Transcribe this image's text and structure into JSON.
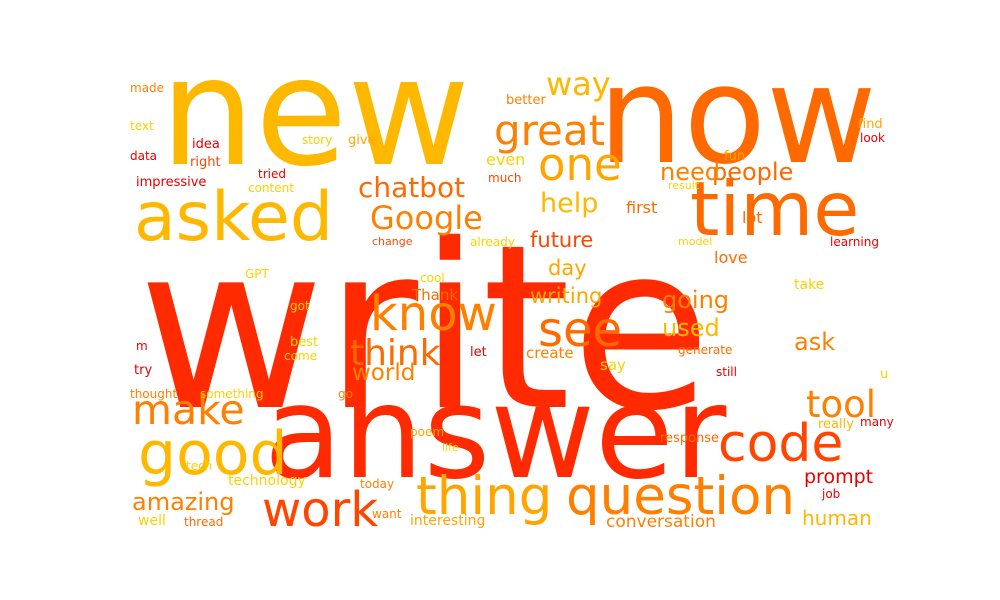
{
  "word_cloud": {
    "colors": {
      "background": "#ffffff",
      "deep_red": "#e60000",
      "red": "#ff2a00",
      "red_orange": "#ff4500",
      "orange": "#ff6a00",
      "dark_orange": "#ff8000",
      "amber": "#ffa500",
      "gold": "#ffb800",
      "yellow": "#ffd000",
      "light_yellow": "#ffe000"
    },
    "words": [
      {
        "text": "write",
        "color": "#ff2a00"
      },
      {
        "text": "new",
        "color": "#ffb800"
      },
      {
        "text": "now",
        "color": "#ff6a00"
      },
      {
        "text": "answer",
        "color": "#ff2a00"
      },
      {
        "text": "asked",
        "color": "#ffb800"
      },
      {
        "text": "time",
        "color": "#ff6a00"
      },
      {
        "text": "one",
        "color": "#ffa500"
      },
      {
        "text": "Google",
        "color": "#ff8000"
      },
      {
        "text": "great",
        "color": "#ff8000"
      },
      {
        "text": "way",
        "color": "#ffb800"
      },
      {
        "text": "know",
        "color": "#ff8000"
      },
      {
        "text": "see",
        "color": "#ff6a00"
      },
      {
        "text": "think",
        "color": "#ff6a00"
      },
      {
        "text": "make",
        "color": "#ff8000"
      },
      {
        "text": "good",
        "color": "#ffb800"
      },
      {
        "text": "code",
        "color": "#ff4500"
      },
      {
        "text": "tool",
        "color": "#ff8000"
      },
      {
        "text": "thing",
        "color": "#ffa500"
      },
      {
        "text": "question",
        "color": "#ff8000"
      },
      {
        "text": "work",
        "color": "#ff4500"
      },
      {
        "text": "chatbot",
        "color": "#ff6a00"
      },
      {
        "text": "help",
        "color": "#ffb800"
      },
      {
        "text": "people",
        "color": "#ff6a00"
      },
      {
        "text": "need",
        "color": "#ff8000"
      },
      {
        "text": "future",
        "color": "#ff4500"
      },
      {
        "text": "day",
        "color": "#ffa500"
      },
      {
        "text": "writing",
        "color": "#ffa500"
      },
      {
        "text": "going",
        "color": "#ff8000"
      },
      {
        "text": "used",
        "color": "#ffb800"
      },
      {
        "text": "ask",
        "color": "#ff8000"
      },
      {
        "text": "world",
        "color": "#ff8000"
      },
      {
        "text": "amazing",
        "color": "#ff8000"
      },
      {
        "text": "prompt",
        "color": "#e60000"
      },
      {
        "text": "human",
        "color": "#ffb800"
      },
      {
        "text": "conversation",
        "color": "#ff8000"
      },
      {
        "text": "even",
        "color": "#ffd000"
      },
      {
        "text": "first",
        "color": "#ff6a00"
      },
      {
        "text": "lot",
        "color": "#ff6a00"
      },
      {
        "text": "love",
        "color": "#ff6a00"
      },
      {
        "text": "Thank",
        "color": "#ff6a00"
      },
      {
        "text": "create",
        "color": "#ff8000"
      },
      {
        "text": "say",
        "color": "#ffd000"
      },
      {
        "text": "technology",
        "color": "#ffd000"
      },
      {
        "text": "interesting",
        "color": "#ffa500"
      },
      {
        "text": "better",
        "color": "#ff8000"
      },
      {
        "text": "made",
        "color": "#ff8000"
      },
      {
        "text": "text",
        "color": "#ffd000"
      },
      {
        "text": "data",
        "color": "#e60000"
      },
      {
        "text": "impressive",
        "color": "#e60000"
      },
      {
        "text": "idea",
        "color": "#e60000"
      },
      {
        "text": "right",
        "color": "#ff4500"
      },
      {
        "text": "story",
        "color": "#ffd000"
      },
      {
        "text": "give",
        "color": "#ffa500"
      },
      {
        "text": "much",
        "color": "#ff4500"
      },
      {
        "text": "tried",
        "color": "#e60000"
      },
      {
        "text": "content",
        "color": "#ffd000"
      },
      {
        "text": "change",
        "color": "#ff4500"
      },
      {
        "text": "already",
        "color": "#ffd000"
      },
      {
        "text": "model",
        "color": "#ffd000"
      },
      {
        "text": "learning",
        "color": "#e60000"
      },
      {
        "text": "result",
        "color": "#ffd000"
      },
      {
        "text": "fun",
        "color": "#ffa500"
      },
      {
        "text": "find",
        "color": "#ffa500"
      },
      {
        "text": "look",
        "color": "#e60000"
      },
      {
        "text": "GPT",
        "color": "#ffd000"
      },
      {
        "text": "cool",
        "color": "#ffd000"
      },
      {
        "text": "got",
        "color": "#ffd000"
      },
      {
        "text": "take",
        "color": "#ffd000"
      },
      {
        "text": "m",
        "color": "#e60000"
      },
      {
        "text": "best",
        "color": "#ffd000"
      },
      {
        "text": "come",
        "color": "#ffd000"
      },
      {
        "text": "let",
        "color": "#e60000"
      },
      {
        "text": "generate",
        "color": "#ff6a00"
      },
      {
        "text": "try",
        "color": "#e60000"
      },
      {
        "text": "still",
        "color": "#e60000"
      },
      {
        "text": "u",
        "color": "#ffd000"
      },
      {
        "text": "thought",
        "color": "#ff8000"
      },
      {
        "text": "something",
        "color": "#ffd000"
      },
      {
        "text": "go",
        "color": "#ff8000"
      },
      {
        "text": "poem",
        "color": "#ffa500"
      },
      {
        "text": "really",
        "color": "#ffb800"
      },
      {
        "text": "many",
        "color": "#e60000"
      },
      {
        "text": "life",
        "color": "#ffd000"
      },
      {
        "text": "response",
        "color": "#ff6a00"
      },
      {
        "text": "tech",
        "color": "#ffd000"
      },
      {
        "text": "today",
        "color": "#ff8000"
      },
      {
        "text": "job",
        "color": "#e60000"
      },
      {
        "text": "well",
        "color": "#ffd000"
      },
      {
        "text": "thread",
        "color": "#ff6a00"
      },
      {
        "text": "want",
        "color": "#ff8000"
      }
    ]
  }
}
